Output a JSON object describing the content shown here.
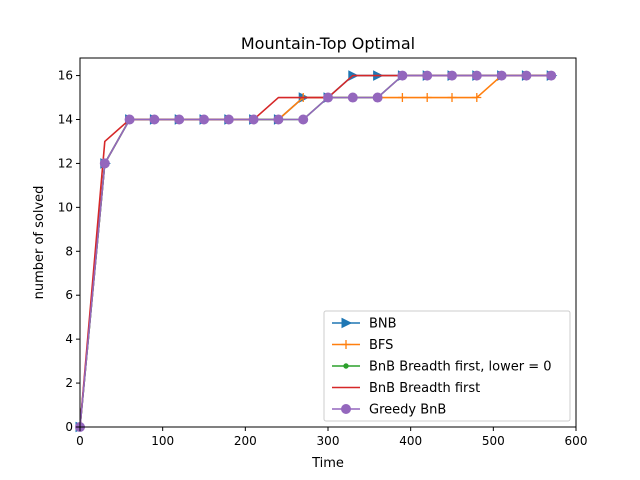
{
  "chart_data": {
    "type": "line",
    "title": "Mountain-Top    Optimal",
    "xlabel": "Time",
    "ylabel": "number of solved",
    "xlim": [
      0,
      600
    ],
    "ylim": [
      0,
      16.8
    ],
    "xticks": [
      0,
      100,
      200,
      300,
      400,
      500,
      600
    ],
    "yticks": [
      0,
      2,
      4,
      6,
      8,
      10,
      12,
      14,
      16
    ],
    "legend_position": "lower-right",
    "grid": false,
    "series": [
      {
        "name": "BNB",
        "color": "#1f77b4",
        "marker": "triangle-right",
        "x": [
          0,
          30,
          60,
          90,
          120,
          150,
          180,
          210,
          240,
          270,
          300,
          330,
          360,
          390,
          420,
          450,
          480,
          510,
          540,
          570
        ],
        "y": [
          0,
          12,
          14,
          14,
          14,
          14,
          14,
          14,
          14,
          15,
          15,
          16,
          16,
          16,
          16,
          16,
          16,
          16,
          16,
          16
        ]
      },
      {
        "name": "BFS",
        "color": "#ff7f0e",
        "marker": "plus",
        "x": [
          0,
          30,
          60,
          90,
          120,
          150,
          180,
          210,
          240,
          270,
          300,
          330,
          360,
          390,
          420,
          450,
          480,
          510,
          540,
          570
        ],
        "y": [
          0,
          12,
          14,
          14,
          14,
          14,
          14,
          14,
          14,
          15,
          15,
          15,
          15,
          15,
          15,
          15,
          15,
          16,
          16,
          16
        ]
      },
      {
        "name": "BnB Breadth first, lower = 0",
        "color": "#2ca02c",
        "marker": "point",
        "x": [
          0,
          30,
          60,
          90,
          120,
          150,
          180,
          210,
          240,
          270,
          300,
          330,
          360,
          390,
          420,
          450,
          480,
          510,
          540,
          570
        ],
        "y": [
          0,
          12,
          14,
          14,
          14,
          14,
          14,
          14,
          14,
          14,
          15,
          15,
          15,
          16,
          16,
          16,
          16,
          16,
          16,
          16
        ]
      },
      {
        "name": "BnB Breadth first",
        "color": "#d62728",
        "marker": "none",
        "x": [
          0,
          30,
          60,
          90,
          120,
          150,
          180,
          210,
          240,
          270,
          300,
          330,
          360,
          390,
          420,
          450,
          480,
          510,
          540,
          570
        ],
        "y": [
          0,
          13,
          14,
          14,
          14,
          14,
          14,
          14,
          15,
          15,
          15,
          16,
          16,
          16,
          16,
          16,
          16,
          16,
          16,
          16
        ]
      },
      {
        "name": "Greedy BnB",
        "color": "#9467bd",
        "marker": "circle",
        "x": [
          0,
          30,
          60,
          90,
          120,
          150,
          180,
          210,
          240,
          270,
          300,
          330,
          360,
          390,
          420,
          450,
          480,
          510,
          540,
          570
        ],
        "y": [
          0,
          12,
          14,
          14,
          14,
          14,
          14,
          14,
          14,
          14,
          15,
          15,
          15,
          16,
          16,
          16,
          16,
          16,
          16,
          16
        ]
      }
    ]
  }
}
